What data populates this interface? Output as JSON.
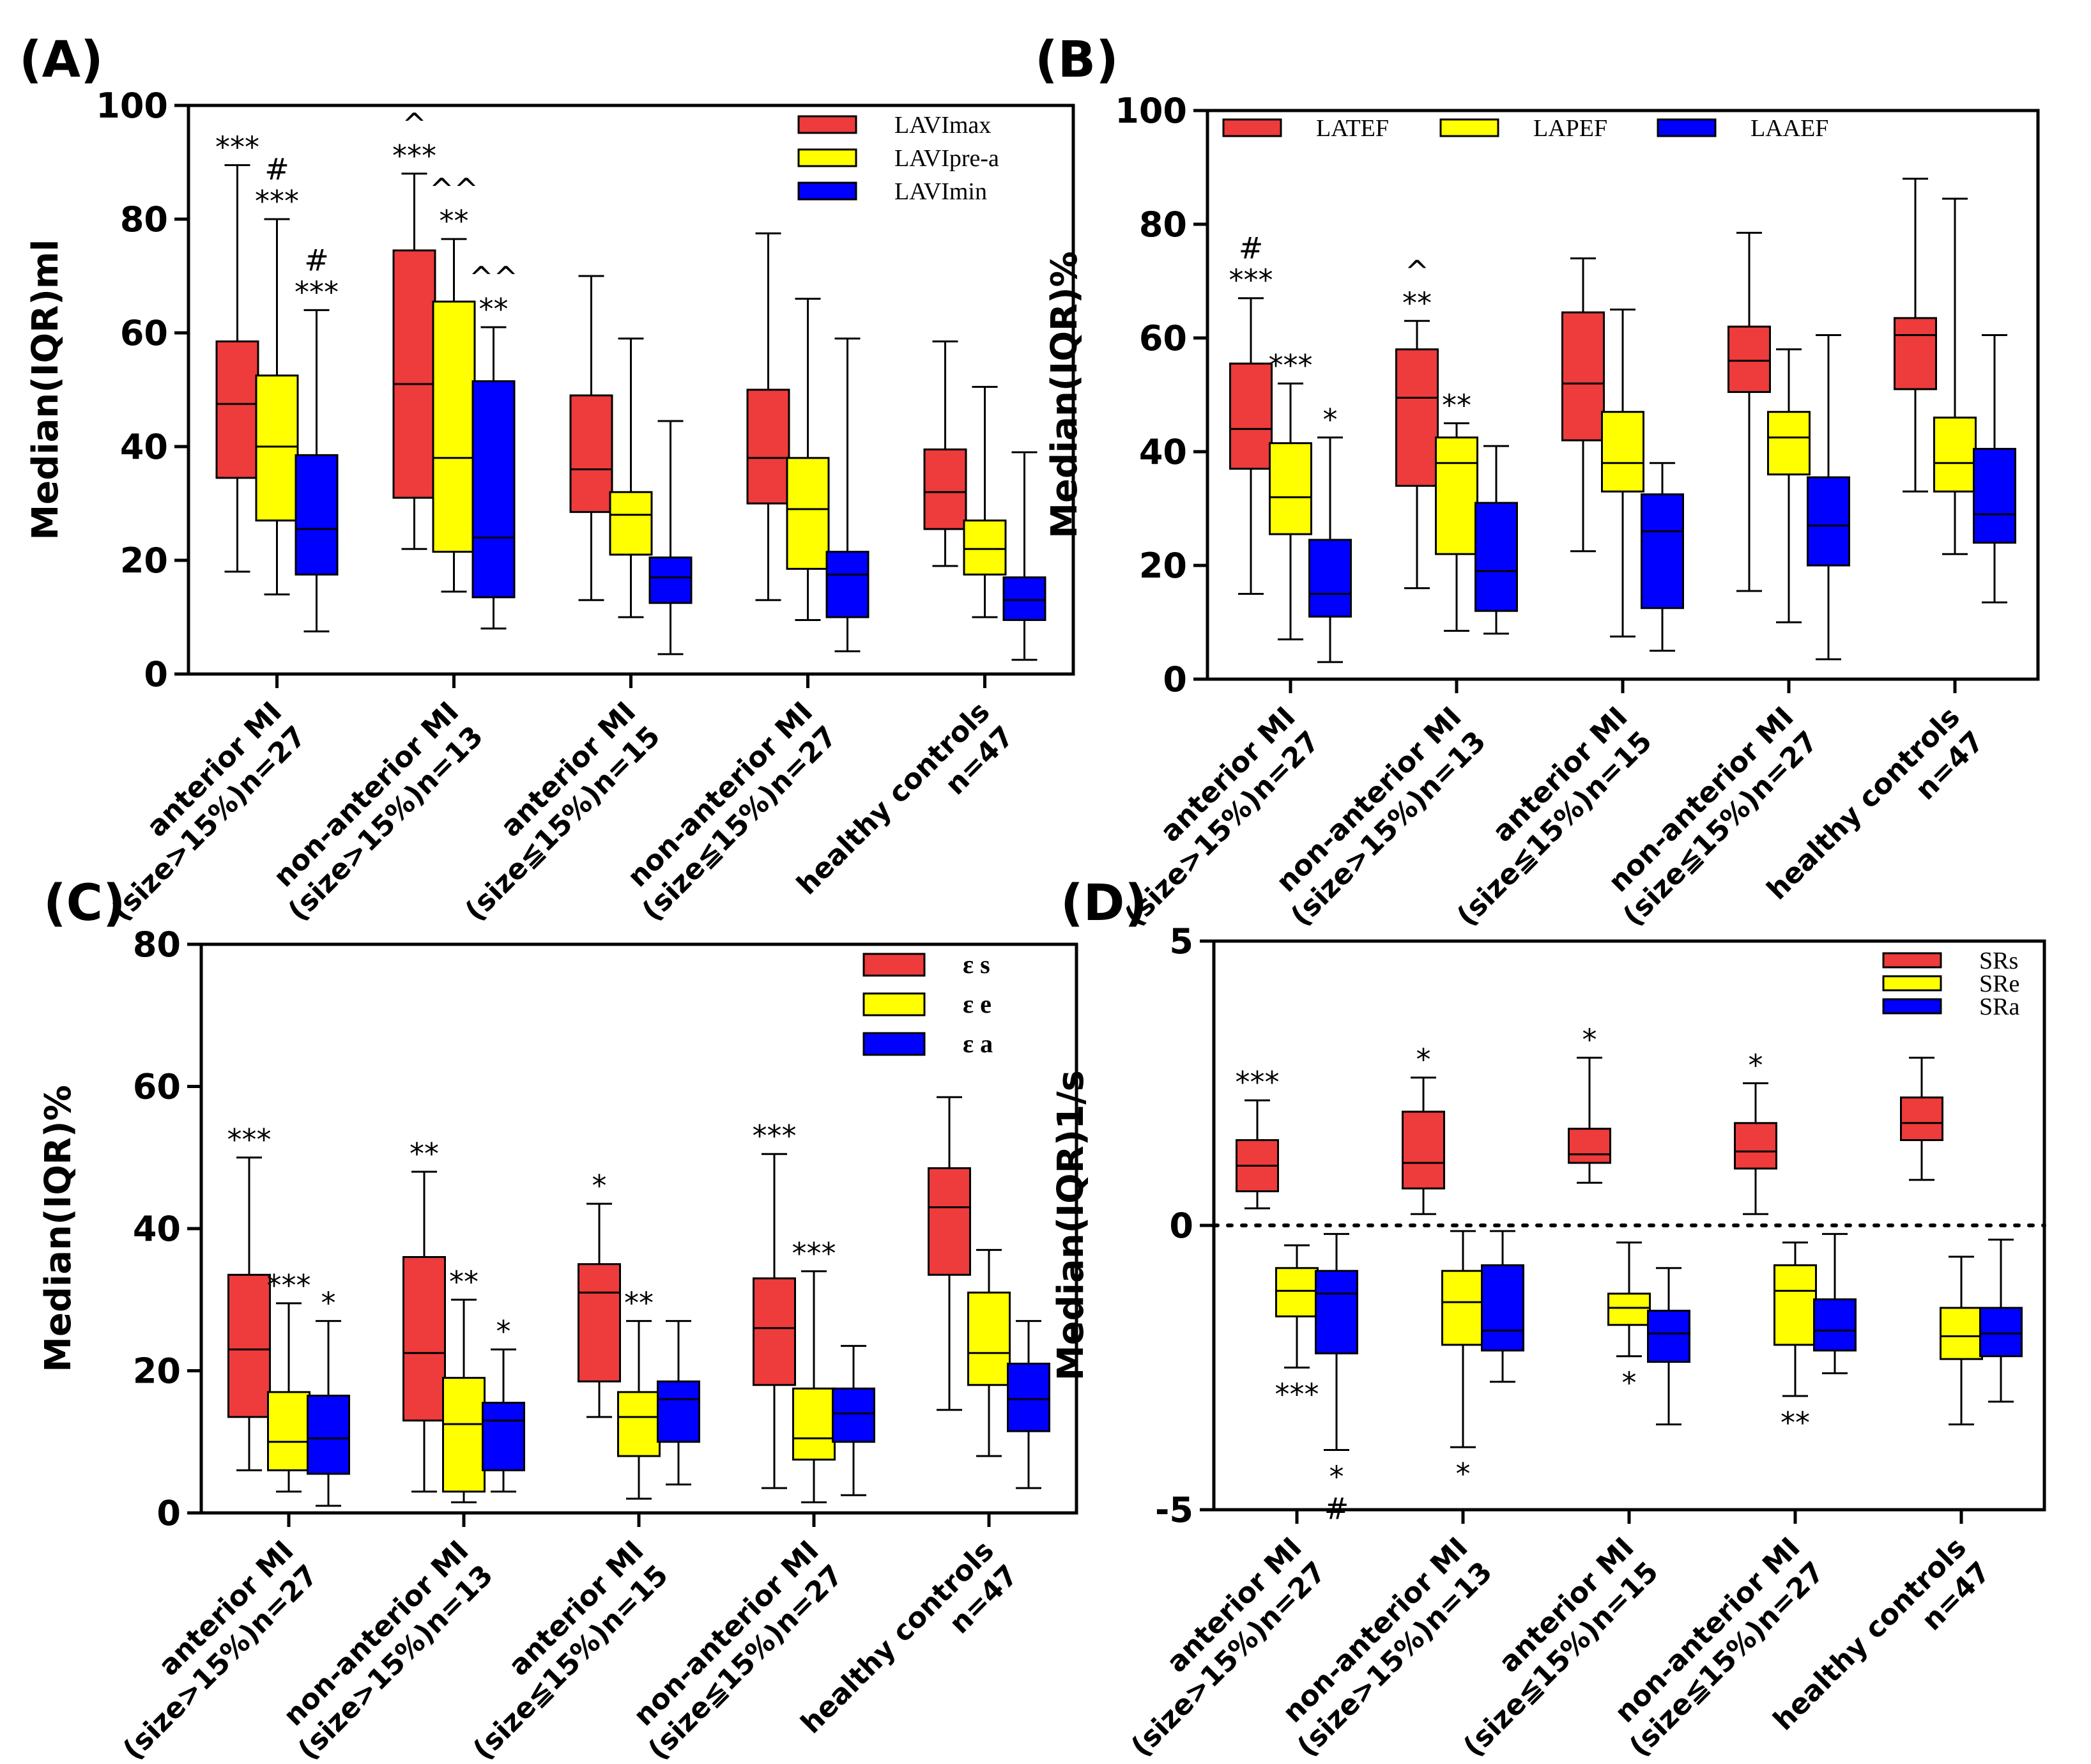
{
  "colors": {
    "red": "#ee3b3b",
    "yellow": "#ffff00",
    "blue": "#0000ff",
    "axis": "#000000"
  },
  "categories": [
    [
      "anterior MI",
      "(size>15%)n=27"
    ],
    [
      "non-anterior MI",
      "(size>15%)n=13"
    ],
    [
      "anterior MI",
      "(size≦15%)n=15"
    ],
    [
      "non-anterior MI",
      "(size≦15%)n=27"
    ],
    [
      "healthy controls",
      "n=47"
    ]
  ],
  "chart_data": [
    {
      "type": "boxplot",
      "panel": "(A)",
      "ylabel": "Median(IQR)ml",
      "ylim": [
        0,
        100
      ],
      "yticks": [
        "0",
        "20",
        "40",
        "60",
        "80",
        "100"
      ],
      "legend_position": "top-right",
      "legend_style": "normal",
      "series": [
        {
          "name": "LAVImax",
          "color": "red",
          "boxes": [
            {
              "min": 18,
              "q1": 34.5,
              "median": 47.5,
              "q3": 58.5,
              "max": 89.5
            },
            {
              "min": 22,
              "q1": 31,
              "median": 51,
              "q3": 74.5,
              "max": 88
            },
            {
              "min": 13,
              "q1": 28.5,
              "median": 36,
              "q3": 49,
              "max": 70
            },
            {
              "min": 13,
              "q1": 30,
              "median": 38,
              "q3": 50,
              "max": 77.5
            },
            {
              "min": 19,
              "q1": 25.5,
              "median": 32,
              "q3": 39.5,
              "max": 58.5
            }
          ]
        },
        {
          "name": "LAVIpre-a",
          "color": "yellow",
          "boxes": [
            {
              "min": 14,
              "q1": 27,
              "median": 40,
              "q3": 52.5,
              "max": 80
            },
            {
              "min": 14.5,
              "q1": 21.5,
              "median": 38,
              "q3": 65.5,
              "max": 76.5
            },
            {
              "min": 10,
              "q1": 21,
              "median": 28,
              "q3": 32,
              "max": 59
            },
            {
              "min": 9.5,
              "q1": 18.5,
              "median": 29,
              "q3": 38,
              "max": 66
            },
            {
              "min": 10,
              "q1": 17.5,
              "median": 22,
              "q3": 27,
              "max": 50.5
            }
          ]
        },
        {
          "name": "LAVImin",
          "color": "blue",
          "boxes": [
            {
              "min": 7.5,
              "q1": 17.5,
              "median": 25.5,
              "q3": 38.5,
              "max": 64
            },
            {
              "min": 8,
              "q1": 13.5,
              "median": 24,
              "q3": 51.5,
              "max": 61
            },
            {
              "min": 3.5,
              "q1": 12.5,
              "median": 17,
              "q3": 20.5,
              "max": 44.5
            },
            {
              "min": 4,
              "q1": 10,
              "median": 17.5,
              "q3": 21.5,
              "max": 59
            },
            {
              "min": 2.5,
              "q1": 9.5,
              "median": 13,
              "q3": 17,
              "max": 39
            }
          ]
        }
      ],
      "annotations": [
        {
          "group": 0,
          "series": 0,
          "y": 89.5,
          "lines": [
            "***"
          ]
        },
        {
          "group": 0,
          "series": 1,
          "y": 80,
          "lines": [
            "#",
            "***"
          ]
        },
        {
          "group": 0,
          "series": 2,
          "y": 64,
          "lines": [
            "#",
            "***"
          ]
        },
        {
          "group": 1,
          "series": 0,
          "y": 88,
          "lines": [
            "^",
            "***"
          ]
        },
        {
          "group": 1,
          "series": 1,
          "y": 76.5,
          "lines": [
            "^^",
            "**"
          ]
        },
        {
          "group": 1,
          "series": 2,
          "y": 61,
          "lines": [
            "^^",
            "**"
          ]
        }
      ]
    },
    {
      "type": "boxplot",
      "panel": "(B)",
      "ylabel": "Median(IQR)%",
      "ylim": [
        0,
        100
      ],
      "yticks": [
        "0",
        "20",
        "40",
        "60",
        "80",
        "100"
      ],
      "legend_position": "top-left (horizontal)",
      "legend_style": "normal",
      "series": [
        {
          "name": "LATEF",
          "color": "red",
          "boxes": [
            {
              "min": 15,
              "q1": 37,
              "median": 44,
              "q3": 55.5,
              "max": 67
            },
            {
              "min": 16,
              "q1": 34,
              "median": 49.5,
              "q3": 58,
              "max": 63
            },
            {
              "min": 22.5,
              "q1": 42,
              "median": 52,
              "q3": 64.5,
              "max": 74
            },
            {
              "min": 15.5,
              "q1": 50.5,
              "median": 56,
              "q3": 62,
              "max": 78.5
            },
            {
              "min": 33,
              "q1": 51,
              "median": 60.5,
              "q3": 63.5,
              "max": 88
            }
          ]
        },
        {
          "name": "LAPEF",
          "color": "yellow",
          "boxes": [
            {
              "min": 7,
              "q1": 25.5,
              "median": 32,
              "q3": 41.5,
              "max": 52
            },
            {
              "min": 8.5,
              "q1": 22,
              "median": 38,
              "q3": 42.5,
              "max": 45
            },
            {
              "min": 7.5,
              "q1": 33,
              "median": 38,
              "q3": 47,
              "max": 65
            },
            {
              "min": 10,
              "q1": 36,
              "median": 42.5,
              "q3": 47,
              "max": 58
            },
            {
              "min": 22,
              "q1": 33,
              "median": 38,
              "q3": 46,
              "max": 84.5
            }
          ]
        },
        {
          "name": "LAAEF",
          "color": "blue",
          "boxes": [
            {
              "min": 3,
              "q1": 11,
              "median": 15,
              "q3": 24.5,
              "max": 42.5
            },
            {
              "min": 8,
              "q1": 12,
              "median": 19,
              "q3": 31,
              "max": 41
            },
            {
              "min": 5,
              "q1": 12.5,
              "median": 26,
              "q3": 32.5,
              "max": 38
            },
            {
              "min": 3.5,
              "q1": 20,
              "median": 27,
              "q3": 35.5,
              "max": 60.5
            },
            {
              "min": 13.5,
              "q1": 24,
              "median": 29,
              "q3": 40.5,
              "max": 60.5
            }
          ]
        }
      ],
      "annotations": [
        {
          "group": 0,
          "series": 0,
          "y": 67,
          "lines": [
            "#",
            "***"
          ]
        },
        {
          "group": 0,
          "series": 1,
          "y": 52,
          "lines": [
            "***"
          ]
        },
        {
          "group": 0,
          "series": 2,
          "y": 42.5,
          "lines": [
            "*"
          ]
        },
        {
          "group": 1,
          "series": 0,
          "y": 63,
          "lines": [
            "^",
            "**"
          ]
        },
        {
          "group": 1,
          "series": 1,
          "y": 45,
          "lines": [
            "**"
          ]
        }
      ]
    },
    {
      "type": "boxplot",
      "panel": "(C)",
      "ylabel": "Median(IQR)%",
      "ylim": [
        0,
        80
      ],
      "yticks": [
        "0",
        "20",
        "40",
        "60",
        "80"
      ],
      "legend_position": "top-right",
      "legend_style": "bold",
      "series": [
        {
          "name": "ε s",
          "color": "red",
          "boxes": [
            {
              "min": 6,
              "q1": 13.5,
              "median": 23,
              "q3": 33.5,
              "max": 50
            },
            {
              "min": 3,
              "q1": 13,
              "median": 22.5,
              "q3": 36,
              "max": 48
            },
            {
              "min": 13.5,
              "q1": 18.5,
              "median": 31,
              "q3": 35,
              "max": 43.5
            },
            {
              "min": 3.5,
              "q1": 18,
              "median": 26,
              "q3": 33,
              "max": 50.5
            },
            {
              "min": 14.5,
              "q1": 33.5,
              "median": 43,
              "q3": 48.5,
              "max": 58.5
            }
          ]
        },
        {
          "name": "ε e",
          "color": "yellow",
          "boxes": [
            {
              "min": 3,
              "q1": 6,
              "median": 10,
              "q3": 17,
              "max": 29.5
            },
            {
              "min": 1.5,
              "q1": 3,
              "median": 12.5,
              "q3": 19,
              "max": 30
            },
            {
              "min": 2,
              "q1": 8,
              "median": 13.5,
              "q3": 17,
              "max": 27
            },
            {
              "min": 1.5,
              "q1": 7.5,
              "median": 10.5,
              "q3": 17.5,
              "max": 34
            },
            {
              "min": 8,
              "q1": 18,
              "median": 22.5,
              "q3": 31,
              "max": 37
            }
          ]
        },
        {
          "name": "ε a",
          "color": "blue",
          "boxes": [
            {
              "min": 1,
              "q1": 5.5,
              "median": 10.5,
              "q3": 16.5,
              "max": 27
            },
            {
              "min": 3,
              "q1": 6,
              "median": 13,
              "q3": 15.5,
              "max": 23
            },
            {
              "min": 4,
              "q1": 10,
              "median": 16,
              "q3": 18.5,
              "max": 27
            },
            {
              "min": 2.5,
              "q1": 10,
              "median": 14,
              "q3": 17.5,
              "max": 23.5
            },
            {
              "min": 3.5,
              "q1": 11.5,
              "median": 16,
              "q3": 21,
              "max": 27
            }
          ]
        }
      ],
      "annotations": [
        {
          "group": 0,
          "series": 0,
          "y": 50,
          "lines": [
            "***"
          ]
        },
        {
          "group": 0,
          "series": 1,
          "y": 29.5,
          "lines": [
            "***"
          ]
        },
        {
          "group": 0,
          "series": 2,
          "y": 27,
          "lines": [
            "*"
          ]
        },
        {
          "group": 1,
          "series": 0,
          "y": 48,
          "lines": [
            "**"
          ]
        },
        {
          "group": 1,
          "series": 1,
          "y": 30,
          "lines": [
            "**"
          ]
        },
        {
          "group": 1,
          "series": 2,
          "y": 23,
          "lines": [
            "*"
          ]
        },
        {
          "group": 2,
          "series": 0,
          "y": 43.5,
          "lines": [
            "*"
          ]
        },
        {
          "group": 2,
          "series": 1,
          "y": 27,
          "lines": [
            "**"
          ]
        },
        {
          "group": 3,
          "series": 0,
          "y": 50.5,
          "lines": [
            "***"
          ]
        },
        {
          "group": 3,
          "series": 1,
          "y": 34,
          "lines": [
            "***"
          ]
        }
      ]
    },
    {
      "type": "boxplot",
      "panel": "(D)",
      "ylabel": "Median(IQR)1/s",
      "ylim": [
        -5,
        5
      ],
      "yticks": [
        "-5",
        "0",
        "5"
      ],
      "reference_line": 0,
      "legend_position": "top-right",
      "legend_style": "normal",
      "series": [
        {
          "name": "SRs",
          "color": "red",
          "boxes": [
            {
              "min": 0.3,
              "q1": 0.6,
              "median": 1.05,
              "q3": 1.5,
              "max": 2.2
            },
            {
              "min": 0.2,
              "q1": 0.65,
              "median": 1.1,
              "q3": 2.0,
              "max": 2.6
            },
            {
              "min": 0.75,
              "q1": 1.1,
              "median": 1.25,
              "q3": 1.7,
              "max": 2.95
            },
            {
              "min": 0.2,
              "q1": 1.0,
              "median": 1.3,
              "q3": 1.8,
              "max": 2.5
            },
            {
              "min": 0.8,
              "q1": 1.5,
              "median": 1.8,
              "q3": 2.25,
              "max": 2.95
            }
          ]
        },
        {
          "name": "SRe",
          "color": "yellow",
          "boxes": [
            {
              "min": -2.5,
              "q1": -1.6,
              "median": -1.15,
              "q3": -0.75,
              "max": -0.35
            },
            {
              "min": -3.9,
              "q1": -2.1,
              "median": -1.35,
              "q3": -0.8,
              "max": -0.1
            },
            {
              "min": -2.3,
              "q1": -1.75,
              "median": -1.45,
              "q3": -1.2,
              "max": -0.3
            },
            {
              "min": -3.0,
              "q1": -2.1,
              "median": -1.15,
              "q3": -0.7,
              "max": -0.3
            },
            {
              "min": -3.5,
              "q1": -2.35,
              "median": -1.95,
              "q3": -1.45,
              "max": -0.55
            }
          ]
        },
        {
          "name": "SRa",
          "color": "blue",
          "boxes": [
            {
              "min": -3.95,
              "q1": -2.25,
              "median": -1.2,
              "q3": -0.8,
              "max": -0.15
            },
            {
              "min": -2.75,
              "q1": -2.2,
              "median": -1.85,
              "q3": -0.7,
              "max": -0.1
            },
            {
              "min": -3.5,
              "q1": -2.4,
              "median": -1.9,
              "q3": -1.5,
              "max": -0.75
            },
            {
              "min": -2.6,
              "q1": -2.2,
              "median": -1.85,
              "q3": -1.3,
              "max": -0.15
            },
            {
              "min": -3.1,
              "q1": -2.3,
              "median": -1.9,
              "q3": -1.45,
              "max": -0.25
            }
          ]
        }
      ],
      "annotations": [
        {
          "group": 0,
          "series": 0,
          "y": 2.2,
          "lines": [
            "***"
          ]
        },
        {
          "group": 0,
          "series": 1,
          "y": -2.5,
          "lines": [
            "***"
          ],
          "below": true
        },
        {
          "group": 0,
          "series": 2,
          "y": -3.95,
          "lines": [
            "*",
            "#"
          ],
          "below": true
        },
        {
          "group": 1,
          "series": 0,
          "y": 2.6,
          "lines": [
            "*"
          ]
        },
        {
          "group": 1,
          "series": 1,
          "y": -3.9,
          "lines": [
            "*"
          ],
          "below": true
        },
        {
          "group": 2,
          "series": 0,
          "y": 2.95,
          "lines": [
            "*"
          ]
        },
        {
          "group": 2,
          "series": 1,
          "y": -2.3,
          "lines": [
            "*"
          ],
          "below": true
        },
        {
          "group": 3,
          "series": 0,
          "y": 2.5,
          "lines": [
            "*"
          ]
        },
        {
          "group": 3,
          "series": 1,
          "y": -3.0,
          "lines": [
            "**"
          ],
          "below": true
        }
      ]
    }
  ]
}
